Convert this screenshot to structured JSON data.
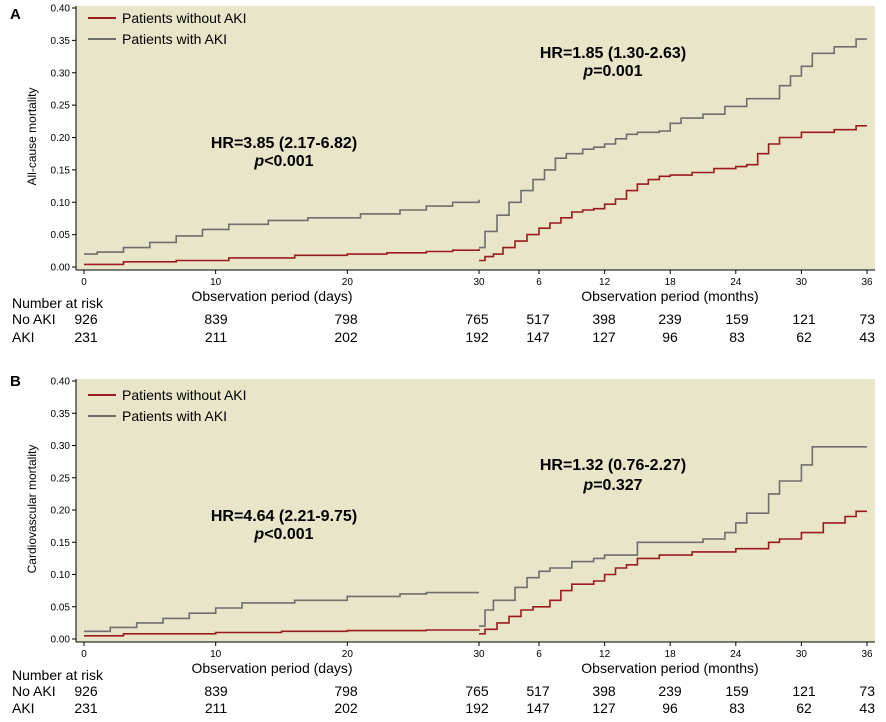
{
  "chart_data": [
    {
      "type": "line",
      "panel_label": "A",
      "ylabel": "All-cause mortality",
      "ylim": [
        0,
        0.4
      ],
      "yticks": [
        "0.00",
        "0.05",
        "0.10",
        "0.15",
        "0.20",
        "0.25",
        "0.30",
        "0.35",
        "0.40"
      ],
      "segment1": {
        "xlabel": "Observation period (days)",
        "xticks": [
          "0",
          "10",
          "20",
          "30"
        ],
        "xlim": [
          0,
          30
        ]
      },
      "segment2": {
        "xlabel": "Observation period (months)",
        "xticks": [
          "6",
          "12",
          "18",
          "24",
          "30",
          "36"
        ],
        "xlim": [
          1,
          36
        ]
      },
      "legend": [
        "Patients without AKI",
        "Patients with AKI"
      ],
      "annotations": [
        {
          "line1": "HR=3.85 (2.17-6.82)",
          "p_symbol": "p",
          "p_text": "<0.001"
        },
        {
          "line1": "HR=1.85 (1.30-2.63)",
          "p_symbol": "p",
          "p_text": "=0.001"
        }
      ],
      "risk": {
        "title": "Number at risk",
        "rows": [
          {
            "label": "No AKI",
            "values": [
              "926",
              "839",
              "798",
              "765",
              "517",
              "398",
              "239",
              "159",
              "121",
              "73"
            ]
          },
          {
            "label": "AKI",
            "values": [
              "231",
              "211",
              "202",
              "192",
              "147",
              "127",
              "96",
              "83",
              "62",
              "43"
            ]
          }
        ]
      },
      "series": [
        {
          "name": "Patients without AKI",
          "color": "#9b1b1f",
          "days": [
            [
              0,
              0.004
            ],
            [
              3,
              0.008
            ],
            [
              7,
              0.01
            ],
            [
              11,
              0.014
            ],
            [
              16,
              0.018
            ],
            [
              20,
              0.02
            ],
            [
              23,
              0.022
            ],
            [
              26,
              0.024
            ],
            [
              28,
              0.026
            ],
            [
              30,
              0.028
            ]
          ],
          "months": [
            [
              1.0,
              0.01
            ],
            [
              1.5,
              0.016
            ],
            [
              2.2,
              0.02
            ],
            [
              3,
              0.03
            ],
            [
              4,
              0.04
            ],
            [
              5,
              0.05
            ],
            [
              6,
              0.06
            ],
            [
              7,
              0.068
            ],
            [
              8,
              0.076
            ],
            [
              9,
              0.085
            ],
            [
              10,
              0.088
            ],
            [
              11,
              0.09
            ],
            [
              12,
              0.097
            ],
            [
              13,
              0.105
            ],
            [
              14,
              0.118
            ],
            [
              15,
              0.128
            ],
            [
              16,
              0.135
            ],
            [
              17,
              0.14
            ],
            [
              18,
              0.142
            ],
            [
              20,
              0.146
            ],
            [
              22,
              0.152
            ],
            [
              24,
              0.155
            ],
            [
              25,
              0.158
            ],
            [
              26,
              0.175
            ],
            [
              27,
              0.19
            ],
            [
              28,
              0.2
            ],
            [
              30,
              0.208
            ],
            [
              33,
              0.212
            ],
            [
              35,
              0.218
            ],
            [
              36,
              0.218
            ]
          ]
        },
        {
          "name": "Patients with AKI",
          "color": "#6e6e6e",
          "days": [
            [
              0,
              0.02
            ],
            [
              1,
              0.023
            ],
            [
              3,
              0.03
            ],
            [
              5,
              0.038
            ],
            [
              7,
              0.048
            ],
            [
              9,
              0.058
            ],
            [
              11,
              0.066
            ],
            [
              14,
              0.072
            ],
            [
              17,
              0.076
            ],
            [
              21,
              0.082
            ],
            [
              24,
              0.088
            ],
            [
              26,
              0.094
            ],
            [
              28,
              0.1
            ],
            [
              30,
              0.104
            ]
          ],
          "months": [
            [
              1.0,
              0.03
            ],
            [
              1.5,
              0.055
            ],
            [
              2.5,
              0.08
            ],
            [
              3.5,
              0.1
            ],
            [
              4.5,
              0.118
            ],
            [
              5.5,
              0.135
            ],
            [
              6.5,
              0.15
            ],
            [
              7.5,
              0.168
            ],
            [
              8.5,
              0.175
            ],
            [
              10,
              0.182
            ],
            [
              11,
              0.185
            ],
            [
              12,
              0.19
            ],
            [
              13,
              0.198
            ],
            [
              14,
              0.205
            ],
            [
              15,
              0.208
            ],
            [
              17,
              0.21
            ],
            [
              18,
              0.222
            ],
            [
              19,
              0.23
            ],
            [
              21,
              0.236
            ],
            [
              23,
              0.248
            ],
            [
              25,
              0.26
            ],
            [
              28,
              0.28
            ],
            [
              29,
              0.295
            ],
            [
              30,
              0.31
            ],
            [
              31,
              0.33
            ],
            [
              33,
              0.34
            ],
            [
              35,
              0.352
            ],
            [
              36,
              0.352
            ]
          ]
        }
      ]
    },
    {
      "type": "line",
      "panel_label": "B",
      "ylabel": "Cardiovascular mortality",
      "ylim": [
        0,
        0.4
      ],
      "yticks": [
        "0.00",
        "0.05",
        "0.10",
        "0.15",
        "0.20",
        "0.25",
        "0.30",
        "0.35",
        "0.40"
      ],
      "segment1": {
        "xlabel": "Observation period (days)",
        "xticks": [
          "0",
          "10",
          "20",
          "30"
        ],
        "xlim": [
          0,
          30
        ]
      },
      "segment2": {
        "xlabel": "Observation period (months)",
        "xticks": [
          "6",
          "12",
          "18",
          "24",
          "30",
          "36"
        ],
        "xlim": [
          1,
          36
        ]
      },
      "legend": [
        "Patients without AKI",
        "Patients with AKI"
      ],
      "annotations": [
        {
          "line1": "HR=4.64 (2.21-9.75)",
          "p_symbol": "p",
          "p_text": "<0.001"
        },
        {
          "line1": "HR=1.32 (0.76-2.27)",
          "p_symbol": "p",
          "p_text": "=0.327"
        }
      ],
      "risk": {
        "title": "Number at risk",
        "rows": [
          {
            "label": "No AKI",
            "values": [
              "926",
              "839",
              "798",
              "765",
              "517",
              "398",
              "239",
              "159",
              "121",
              "73"
            ]
          },
          {
            "label": "AKI",
            "values": [
              "231",
              "211",
              "202",
              "192",
              "147",
              "127",
              "96",
              "83",
              "62",
              "43"
            ]
          }
        ]
      },
      "series": [
        {
          "name": "Patients without AKI",
          "color": "#9b1b1f",
          "days": [
            [
              0,
              0.005
            ],
            [
              3,
              0.008
            ],
            [
              10,
              0.01
            ],
            [
              15,
              0.012
            ],
            [
              20,
              0.013
            ],
            [
              26,
              0.014
            ],
            [
              30,
              0.015
            ]
          ],
          "months": [
            [
              1.0,
              0.008
            ],
            [
              1.5,
              0.015
            ],
            [
              2.5,
              0.025
            ],
            [
              3.5,
              0.035
            ],
            [
              4.5,
              0.045
            ],
            [
              5.5,
              0.05
            ],
            [
              7,
              0.06
            ],
            [
              8,
              0.075
            ],
            [
              9,
              0.085
            ],
            [
              11,
              0.09
            ],
            [
              12,
              0.1
            ],
            [
              13,
              0.11
            ],
            [
              14,
              0.115
            ],
            [
              15,
              0.125
            ],
            [
              17,
              0.13
            ],
            [
              20,
              0.135
            ],
            [
              24,
              0.14
            ],
            [
              27,
              0.15
            ],
            [
              28,
              0.155
            ],
            [
              30,
              0.165
            ],
            [
              32,
              0.18
            ],
            [
              34,
              0.19
            ],
            [
              35,
              0.198
            ],
            [
              36,
              0.198
            ]
          ]
        },
        {
          "name": "Patients with AKI",
          "color": "#6e6e6e",
          "days": [
            [
              0,
              0.012
            ],
            [
              2,
              0.018
            ],
            [
              4,
              0.025
            ],
            [
              6,
              0.032
            ],
            [
              8,
              0.04
            ],
            [
              10,
              0.048
            ],
            [
              12,
              0.056
            ],
            [
              16,
              0.06
            ],
            [
              20,
              0.066
            ],
            [
              24,
              0.07
            ],
            [
              26,
              0.072
            ],
            [
              30,
              0.072
            ]
          ],
          "months": [
            [
              1.0,
              0.02
            ],
            [
              1.5,
              0.045
            ],
            [
              2.2,
              0.06
            ],
            [
              4,
              0.08
            ],
            [
              5,
              0.095
            ],
            [
              6,
              0.105
            ],
            [
              7,
              0.11
            ],
            [
              9,
              0.12
            ],
            [
              11,
              0.125
            ],
            [
              12,
              0.13
            ],
            [
              15,
              0.15
            ],
            [
              18,
              0.15
            ],
            [
              21,
              0.155
            ],
            [
              23,
              0.165
            ],
            [
              24,
              0.18
            ],
            [
              25,
              0.195
            ],
            [
              27,
              0.225
            ],
            [
              28,
              0.245
            ],
            [
              30,
              0.27
            ],
            [
              31,
              0.298
            ],
            [
              35,
              0.298
            ],
            [
              36,
              0.298
            ]
          ]
        }
      ]
    }
  ]
}
